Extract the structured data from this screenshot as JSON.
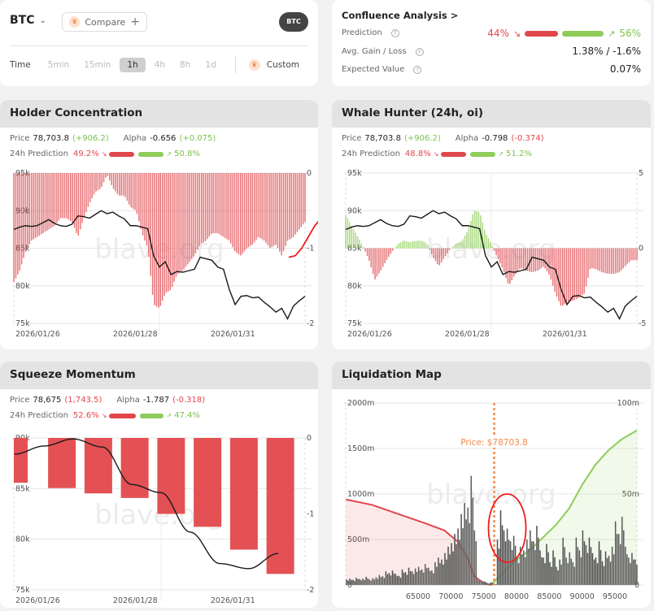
{
  "top": {
    "symbol": "BTC",
    "compare_label": "Compare",
    "badge": "BTC",
    "time_label": "Time",
    "timeframes": [
      "5min",
      "15min",
      "1h",
      "4h",
      "8h",
      "1d"
    ],
    "active_timeframe": "1h",
    "custom_label": "Custom"
  },
  "confluence": {
    "title": "Confluence Analysis >",
    "prediction_label": "Prediction",
    "down_pct": "44%",
    "up_pct": "56%",
    "down_value": 44,
    "up_value": 56,
    "avg_label": "Avg. Gain / Loss",
    "avg_value": "1.38% / -1.6%",
    "ev_label": "Expected Value",
    "ev_value": "0.07%"
  },
  "colors": {
    "red": "#e0474c",
    "green": "#8fcc5a",
    "price_line": "#1a1a1a",
    "price_marker": "#f5894a"
  },
  "holder": {
    "title": "Holder Concentration",
    "price_label": "Price",
    "price": "78,703.8",
    "price_change": "(+906.2)",
    "alpha_label": "Alpha",
    "alpha": "-0.656",
    "alpha_change": "(+0.075)",
    "pred_label": "24h Prediction",
    "down_pct": "49.2%",
    "up_pct": "50.8%",
    "down_value": 49.2,
    "up_value": 50.8
  },
  "whale": {
    "title": "Whale Hunter (24h, oi)",
    "price_label": "Price",
    "price": "78,703.8",
    "price_change": "(+906.2)",
    "alpha_label": "Alpha",
    "alpha": "-0.798",
    "alpha_change": "(-0.374)",
    "pred_label": "24h Prediction",
    "down_pct": "48.8%",
    "up_pct": "51.2%",
    "down_value": 48.8,
    "up_value": 51.2
  },
  "squeeze": {
    "title": "Squeeze Momentum",
    "price_label": "Price",
    "price": "78,675",
    "price_change": "(1,743.5)",
    "alpha_label": "Alpha",
    "alpha": "-1.787",
    "alpha_change": "(-0.318)",
    "pred_label": "24h Prediction",
    "down_pct": "52.6%",
    "up_pct": "47.4%",
    "down_value": 52.6,
    "up_value": 47.4
  },
  "liq": {
    "title": "Liquidation Map",
    "watermark": "blave.org"
  },
  "chart_data": [
    {
      "id": "holder",
      "type": "bar+line",
      "left_ticks": [
        "95k",
        "90k",
        "85k",
        "80k",
        "75k"
      ],
      "left_range": [
        75,
        95
      ],
      "right_ticks": [
        "0",
        "-1",
        "-2"
      ],
      "right_range": [
        -2,
        0
      ],
      "x_ticks": [
        "2026/01/26",
        "2026/01/28",
        "2026/01/31"
      ],
      "watermark": "blave.org",
      "price_k": [
        87.5,
        87.8,
        88,
        87.9,
        88,
        88.4,
        88.8,
        88.3,
        88,
        87.9,
        88.2,
        89.3,
        89.2,
        89,
        89.5,
        90,
        89.6,
        89.8,
        89.3,
        88.9,
        88,
        88,
        87.8,
        87.6,
        84,
        82.5,
        83.2,
        81.5,
        81.9,
        81.8,
        82,
        82.2,
        83.8,
        83.6,
        83.4,
        82.5,
        82.2,
        79.5,
        77.5,
        78.6,
        78.7,
        78.4,
        78.5,
        77.8,
        77.2,
        76.5,
        77.0,
        75.6,
        77.3,
        78.0,
        78.6
      ],
      "indicator": [
        -1.45,
        -1.3,
        -1.05,
        -0.9,
        -0.85,
        -0.8,
        -0.75,
        -0.7,
        -0.6,
        -0.6,
        -0.65,
        -0.85,
        -0.6,
        -0.4,
        -0.25,
        -0.2,
        -0.02,
        -0.2,
        -0.3,
        -0.3,
        -0.45,
        -0.5,
        -0.8,
        -1.0,
        -1.75,
        -1.8,
        -1.6,
        -1.55,
        -1.35,
        -1.3,
        -1.2,
        -1.1,
        -0.95,
        -0.9,
        -0.8,
        -0.8,
        -0.85,
        -0.9,
        -1.05,
        -1.1,
        -1.0,
        -0.95,
        -0.85,
        -0.9,
        -1.0,
        -0.95,
        -1.1,
        -0.9,
        -0.85,
        -0.75,
        -0.65
      ],
      "forecast": [
        -1.12,
        -1.1,
        -1.0,
        -0.85,
        -0.7,
        -0.6
      ]
    },
    {
      "id": "whale",
      "type": "bar+line",
      "left_ticks": [
        "95k",
        "90k",
        "85k",
        "80k",
        "75k"
      ],
      "left_range": [
        75,
        95
      ],
      "right_ticks": [
        "5",
        "0",
        "-5"
      ],
      "right_range": [
        -5,
        5
      ],
      "x_ticks": [
        "2026/01/26",
        "2026/01/28",
        "2026/01/31"
      ],
      "watermark": "blave.org",
      "price_k": [
        87.5,
        87.8,
        88,
        87.9,
        88,
        88.4,
        88.8,
        88.3,
        88,
        87.9,
        88.2,
        89.3,
        89.2,
        89,
        89.5,
        90,
        89.6,
        89.8,
        89.3,
        88.9,
        88,
        88,
        87.8,
        87.6,
        84,
        82.5,
        83.2,
        81.5,
        81.9,
        81.8,
        82,
        82.2,
        83.8,
        83.6,
        83.4,
        82.5,
        82.2,
        79.5,
        77.5,
        78.6,
        78.7,
        78.4,
        78.5,
        77.8,
        77.2,
        76.5,
        77.0,
        75.6,
        77.3,
        78.0,
        78.6
      ],
      "indicator": [
        2.2,
        1.5,
        0.8,
        0.1,
        -0.8,
        -2.1,
        -1.5,
        -0.8,
        -0.2,
        0.3,
        0.5,
        0.4,
        0.5,
        0.5,
        0.3,
        -0.6,
        -1.2,
        -0.6,
        0.0,
        0.3,
        0.5,
        1.2,
        2.5,
        2.4,
        1.0,
        0.3,
        -0.6,
        -1.4,
        -2.5,
        -1.8,
        -1.3,
        -1.5,
        -1.6,
        -1.5,
        -1.2,
        -1.8,
        -3.0,
        -3.9,
        -3.6,
        -3.5,
        -3.3,
        -3.0,
        -1.3,
        -1.4,
        -1.6,
        -1.7,
        -1.7,
        -1.6,
        -1.2,
        -0.8,
        -0.8
      ]
    },
    {
      "id": "squeeze",
      "type": "bar+line",
      "left_ticks": [
        "90k",
        "85k",
        "80k",
        "75k"
      ],
      "left_range": [
        75,
        90
      ],
      "right_ticks": [
        "0",
        "-1",
        "-2"
      ],
      "right_range": [
        -2,
        0
      ],
      "x_ticks": [
        "2026/01/26",
        "2026/01/28",
        "2026/01/31"
      ],
      "watermark": "blave.org",
      "bars": [
        -0.59,
        -0.66,
        -0.73,
        -0.79,
        -1.0,
        -1.17,
        -1.47,
        -1.79
      ],
      "price_k": [
        88.4,
        89.2,
        89.9,
        89.1,
        85.4,
        84.6,
        80.7,
        77.6,
        77.1,
        78.6
      ]
    },
    {
      "id": "liquidation",
      "type": "bar+area",
      "left_ticks": [
        "2000m",
        "1500m",
        "1000m",
        "500m",
        "0"
      ],
      "left_range": [
        0,
        2000
      ],
      "right_ticks": [
        "100m",
        "50m",
        "0"
      ],
      "right_range": [
        0,
        100
      ],
      "x_ticks": [
        "65000",
        "70000",
        "75000",
        "80000",
        "85000",
        "90000",
        "95000"
      ],
      "current_price": 78703.8,
      "current_price_label": "Price: $78703.8",
      "bin_start": 54000,
      "bin_step": 500,
      "liquidations_m": [
        60,
        70,
        55,
        80,
        65,
        70,
        90,
        60,
        75,
        85,
        110,
        95,
        150,
        130,
        160,
        120,
        100,
        170,
        140,
        190,
        150,
        180,
        200,
        170,
        230,
        190,
        160,
        250,
        300,
        280,
        350,
        420,
        460,
        560,
        620,
        780,
        900,
        850,
        1200,
        600,
        60,
        50,
        40,
        20,
        30,
        10,
        500,
        820,
        600,
        620,
        480,
        540,
        300,
        420,
        380,
        500,
        600,
        480,
        650,
        380,
        300,
        450,
        250,
        380,
        200,
        280,
        520,
        300,
        360,
        250,
        520,
        380,
        600,
        440,
        520,
        350,
        300,
        480,
        260,
        370,
        320,
        420,
        700,
        560,
        750,
        420,
        300,
        350,
        280
      ],
      "cumulative_short_m": [
        [
          54000,
          47
        ],
        [
          58000,
          44
        ],
        [
          62000,
          39
        ],
        [
          66000,
          34
        ],
        [
          69000,
          30
        ],
        [
          71000,
          24
        ],
        [
          72500,
          15
        ],
        [
          73500,
          5
        ],
        [
          75000,
          1
        ],
        [
          76100,
          0
        ]
      ],
      "cumulative_long_m": [
        [
          76100,
          0
        ],
        [
          78000,
          7
        ],
        [
          80000,
          14
        ],
        [
          82000,
          19
        ],
        [
          84000,
          26
        ],
        [
          86000,
          33
        ],
        [
          88000,
          42
        ],
        [
          90000,
          55
        ],
        [
          92000,
          66
        ],
        [
          94000,
          74
        ],
        [
          96000,
          80
        ],
        [
          98500,
          85
        ]
      ]
    }
  ]
}
